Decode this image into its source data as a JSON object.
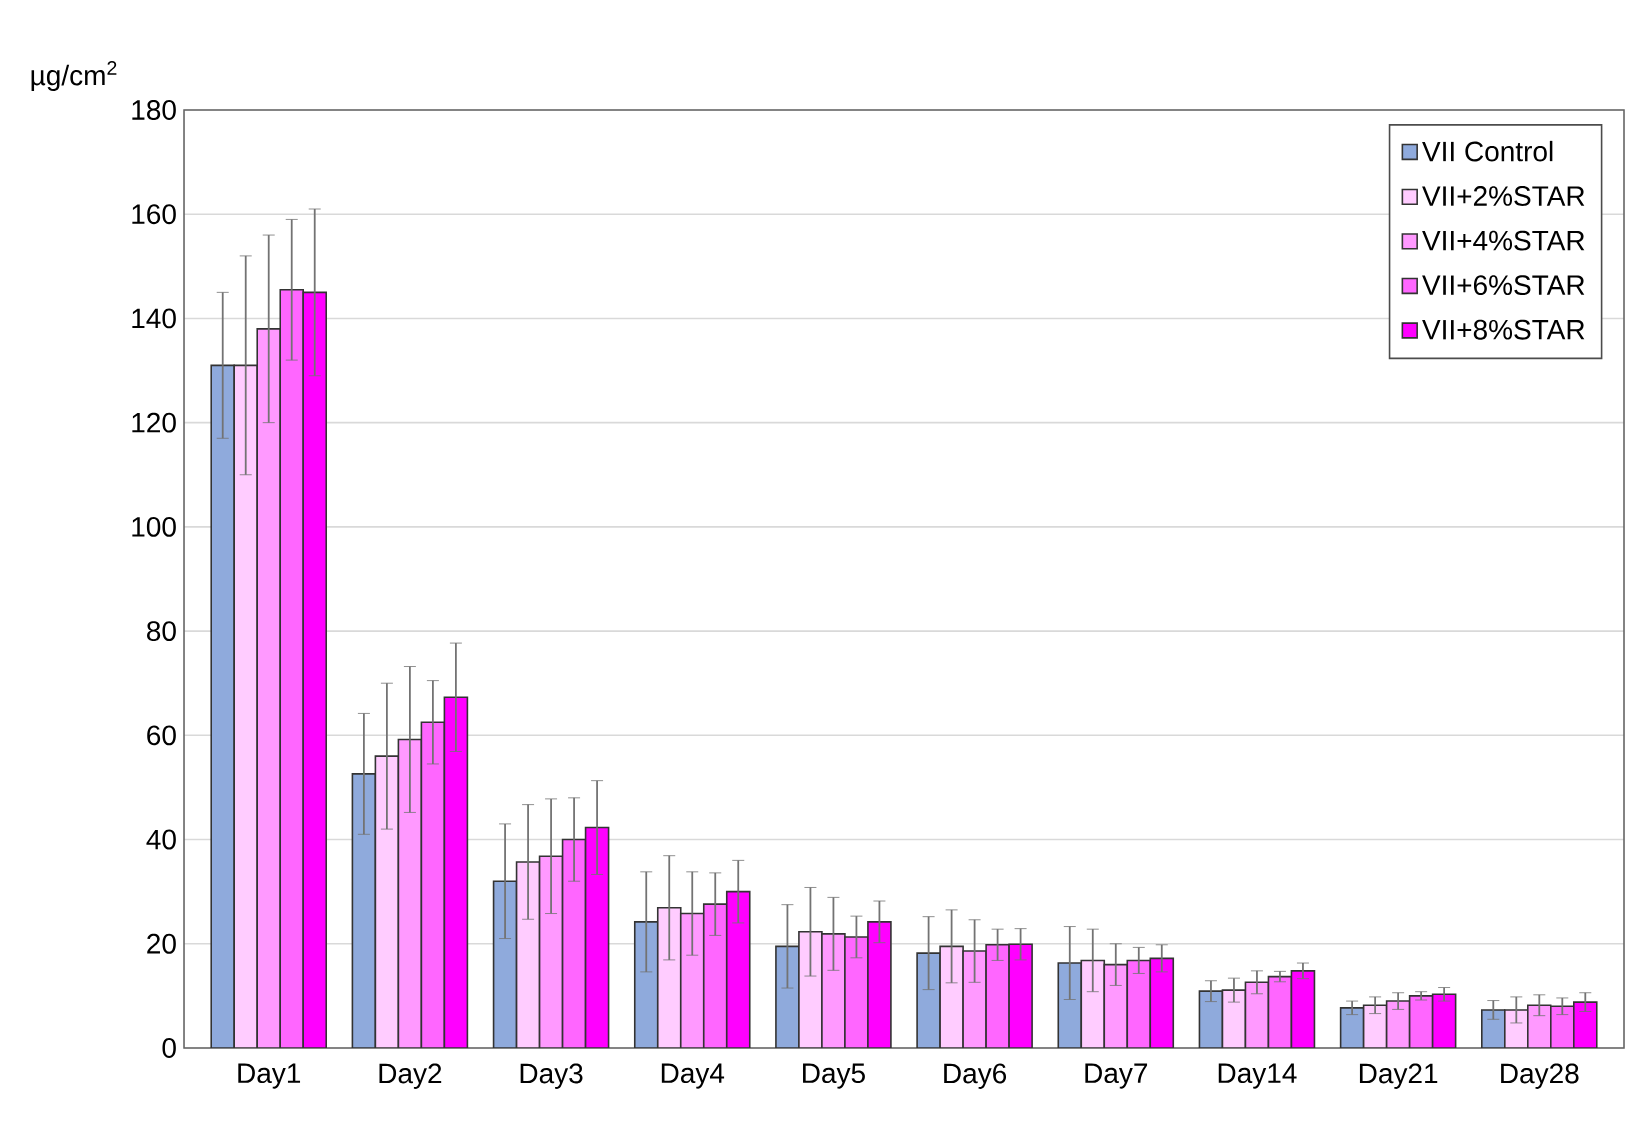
{
  "chart_data": {
    "type": "bar",
    "ylabel": "µg/cm$^{2}$",
    "categories": [
      "Day1",
      "Day2",
      "Day3",
      "Day4",
      "Day5",
      "Day6",
      "Day7",
      "Day14",
      "Day21",
      "Day28"
    ],
    "ylim": [
      0,
      180
    ],
    "yticks": [
      0,
      20,
      40,
      60,
      80,
      100,
      120,
      140,
      160,
      180
    ],
    "grid": "y",
    "legend": "top right",
    "series": [
      {
        "name": "VII Control",
        "color": "#8faadc",
        "values": [
          131,
          52.6,
          32,
          24.2,
          19.5,
          18.2,
          16.3,
          10.9,
          7.7,
          7.3
        ],
        "errors": [
          14,
          11.6,
          11,
          9.6,
          8,
          7,
          7,
          2,
          1.3,
          1.8
        ]
      },
      {
        "name": "VII+2%STAR",
        "color": "#ffccff",
        "values": [
          131,
          56,
          35.7,
          26.9,
          22.3,
          19.5,
          16.8,
          11.1,
          8.2,
          7.3
        ],
        "errors": [
          21,
          14,
          11,
          10,
          8.5,
          7,
          6,
          2.3,
          1.6,
          2.5
        ]
      },
      {
        "name": "VII+4%STAR",
        "color": "#ff99ff",
        "values": [
          138,
          59.2,
          36.8,
          25.8,
          21.9,
          18.6,
          16,
          12.6,
          9,
          8.2
        ],
        "errors": [
          18,
          14,
          11,
          8,
          7,
          6,
          4,
          2.2,
          1.6,
          2
        ]
      },
      {
        "name": "VII+6%STAR",
        "color": "#ff66ff",
        "values": [
          145.5,
          62.5,
          40,
          27.6,
          21.3,
          19.8,
          16.8,
          13.7,
          10,
          8
        ],
        "errors": [
          13.5,
          8,
          8,
          6,
          4,
          3,
          2.5,
          1,
          0.8,
          1.6
        ]
      },
      {
        "name": "VII+8%STAR",
        "color": "#ff00ff",
        "values": [
          145,
          67.3,
          42.3,
          30,
          24.2,
          19.9,
          17.2,
          14.8,
          10.3,
          8.8
        ],
        "errors": [
          16,
          10.4,
          9,
          6,
          4,
          3,
          2.6,
          1.5,
          1.3,
          1.8
        ]
      }
    ]
  }
}
